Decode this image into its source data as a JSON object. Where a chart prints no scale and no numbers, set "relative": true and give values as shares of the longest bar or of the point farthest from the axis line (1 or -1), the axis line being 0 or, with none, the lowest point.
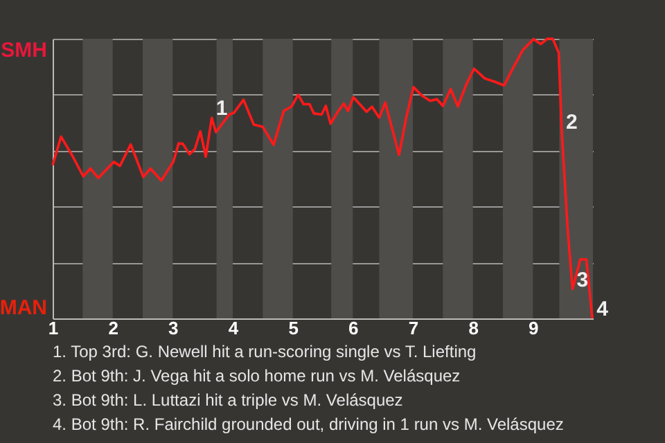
{
  "chart_data": {
    "type": "line",
    "relative": true,
    "x": [
      1,
      1.14,
      1.33,
      1.51,
      1.63,
      1.76,
      2.02,
      2.12,
      2.3,
      2.51,
      2.63,
      2.81,
      3.01,
      3.1,
      3.17,
      3.28,
      3.37,
      3.46,
      3.55,
      3.65,
      3.72,
      3.94,
      4.02,
      4.18,
      4.35,
      4.5,
      4.68,
      4.85,
      4.98,
      5.09,
      5.18,
      5.28,
      5.35,
      5.48,
      5.55,
      5.63,
      5.75,
      5.85,
      5.92,
      6.01,
      6.23,
      6.32,
      6.44,
      6.54,
      6.77,
      6.89,
      7.01,
      7.15,
      7.29,
      7.4,
      7.5,
      7.63,
      7.75,
      7.89,
      8.02,
      8.2,
      8.37,
      8.52,
      8.67,
      8.83,
      9.01,
      9.13,
      9.24,
      9.33,
      9.43,
      9.48,
      9.58,
      9.66,
      9.79,
      9.89,
      9.99
    ],
    "series": [
      {
        "color": "#ff1a1a",
        "values": [
          0.548,
          0.65,
          0.581,
          0.508,
          0.536,
          0.502,
          0.56,
          0.545,
          0.622,
          0.506,
          0.536,
          0.493,
          0.56,
          0.626,
          0.624,
          0.587,
          0.606,
          0.669,
          0.578,
          0.717,
          0.666,
          0.729,
          0.735,
          0.782,
          0.693,
          0.685,
          0.621,
          0.742,
          0.758,
          0.8,
          0.766,
          0.766,
          0.733,
          0.729,
          0.76,
          0.696,
          0.739,
          0.768,
          0.742,
          0.791,
          0.739,
          0.757,
          0.718,
          0.772,
          0.585,
          0.718,
          0.827,
          0.797,
          0.778,
          0.784,
          0.76,
          0.82,
          0.758,
          0.837,
          0.893,
          0.858,
          0.846,
          0.833,
          0.896,
          0.959,
          0.999,
          0.981,
          1,
          1,
          0.95,
          0.669,
          0.315,
          0.105,
          0.211,
          0.211,
          0
        ]
      }
    ],
    "xlim": [
      1,
      10
    ],
    "xticks": [
      1,
      2,
      3,
      4,
      5,
      6,
      7,
      8,
      9
    ],
    "grid": "y",
    "line_style": "solid",
    "bands": [
      {
        "axis": "x",
        "from": 1.5,
        "to": 2,
        "color": "#4f4d4a"
      },
      {
        "axis": "x",
        "from": 2.5,
        "to": 3,
        "color": "#4f4d4a"
      },
      {
        "axis": "x",
        "from": 3.73,
        "to": 4,
        "color": "#4f4d4a"
      },
      {
        "axis": "x",
        "from": 4.5,
        "to": 5,
        "color": "#4f4d4a"
      },
      {
        "axis": "x",
        "from": 5.64,
        "to": 6,
        "color": "#4f4d4a"
      },
      {
        "axis": "x",
        "from": 6.44,
        "to": 7,
        "color": "#4f4d4a"
      },
      {
        "axis": "x",
        "from": 7.5,
        "to": 8,
        "color": "#4f4d4a"
      },
      {
        "axis": "x",
        "from": 8.5,
        "to": 9,
        "color": "#4f4d4a"
      },
      {
        "axis": "x",
        "from": 9.44,
        "to": 10,
        "color": "#4f4d4a"
      }
    ],
    "annotations": [
      "SMH",
      "MAN",
      {
        "text": "1",
        "x": 3.65,
        "y": 0.717
      },
      {
        "text": "2",
        "x": 9.48,
        "y": 0.669
      },
      {
        "text": "3",
        "x": 9.66,
        "y": 0.105
      },
      {
        "text": "4",
        "x": 9.99,
        "y": 0
      },
      "1. Top 3rd: G. Newell hit a run-scoring single vs T. Liefting",
      "2. Bot 9th: J. Vega hit a solo home run vs M. Velásquez",
      "3. Bot 9th: L. Luttazi hit a triple vs M. Velásquez",
      "4. Bot 9th: R. Fairchild grounded out, driving in 1 run vs M. Velásquez"
    ]
  }
}
